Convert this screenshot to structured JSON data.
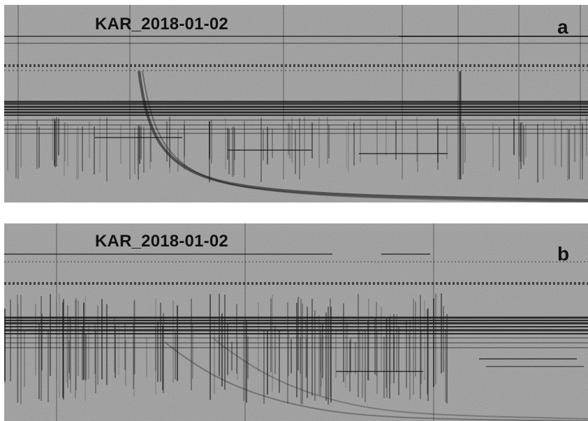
{
  "figure": {
    "panels": [
      {
        "id": "a",
        "station_label": "KAR_2018-01-02",
        "panel_letter": "a"
      },
      {
        "id": "b",
        "station_label": "KAR_2018-01-02",
        "panel_letter": "b"
      }
    ]
  },
  "colors": {
    "background": "#ffffff",
    "noise_base": "#9a9a9a",
    "line_dark": "#161616",
    "text": "#111111"
  }
}
